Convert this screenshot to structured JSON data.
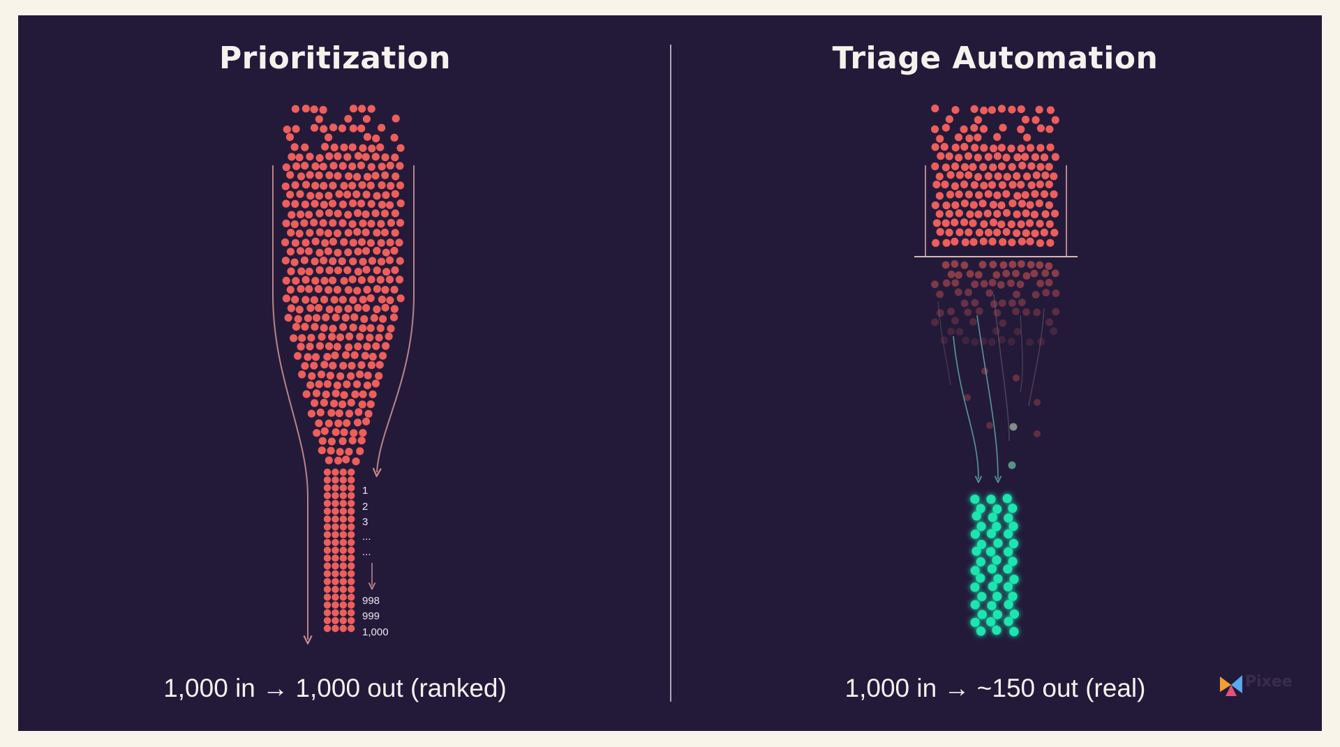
{
  "left_panel": {
    "title": "Prioritization",
    "caption": "1,000 in → 1,000 out (ranked)",
    "rank_labels": [
      "1",
      "2",
      "3",
      "...",
      "...",
      "998",
      "999",
      "1,000"
    ]
  },
  "right_panel": {
    "title": "Triage Automation",
    "caption": "1,000 in → ~150 out (real)"
  },
  "watermark": {
    "text": "Pixee"
  },
  "colors": {
    "background": "#231a3a",
    "frame": "#f8f4ea",
    "dot_red": "#ee5e5a",
    "dot_green": "#1ee6b0",
    "text": "#f5f2ee"
  }
}
